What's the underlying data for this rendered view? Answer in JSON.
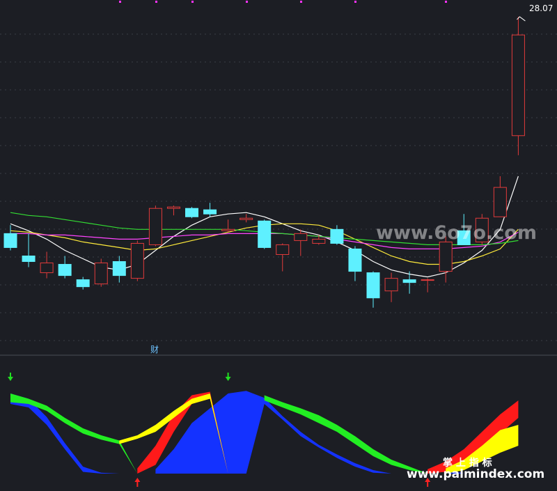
{
  "chart_data": [
    {
      "type": "candlestick",
      "name": "",
      "ylim": [
        16.5,
        28.5
      ],
      "last_price_label": "28.07",
      "note_label": "财",
      "up_color": "#e23b3b",
      "down_color": "#5ef0ff",
      "candles": [
        {
          "o": 20.35,
          "h": 20.65,
          "l": 19.75,
          "c": 19.85
        },
        {
          "o": 19.55,
          "h": 20.35,
          "l": 19.15,
          "c": 19.35
        },
        {
          "o": 18.95,
          "h": 19.7,
          "l": 18.75,
          "c": 19.3
        },
        {
          "o": 19.25,
          "h": 19.55,
          "l": 18.75,
          "c": 18.85
        },
        {
          "o": 18.7,
          "h": 18.8,
          "l": 18.35,
          "c": 18.45
        },
        {
          "o": 18.55,
          "h": 19.45,
          "l": 18.45,
          "c": 19.3
        },
        {
          "o": 19.35,
          "h": 19.55,
          "l": 18.6,
          "c": 18.85
        },
        {
          "o": 18.75,
          "h": 20.1,
          "l": 18.65,
          "c": 20.0
        },
        {
          "o": 19.95,
          "h": 21.35,
          "l": 19.9,
          "c": 21.25
        },
        {
          "o": 21.25,
          "h": 21.35,
          "l": 21.0,
          "c": 21.3
        },
        {
          "o": 21.25,
          "h": 21.3,
          "l": 20.9,
          "c": 20.95
        },
        {
          "o": 21.2,
          "h": 21.45,
          "l": 20.95,
          "c": 21.05
        },
        {
          "o": 20.45,
          "h": 20.85,
          "l": 20.4,
          "c": 20.5
        },
        {
          "o": 20.85,
          "h": 21.05,
          "l": 20.75,
          "c": 20.9
        },
        {
          "o": 20.8,
          "h": 20.85,
          "l": 19.8,
          "c": 19.85
        },
        {
          "o": 19.6,
          "h": 20.0,
          "l": 19.0,
          "c": 19.95
        },
        {
          "o": 20.1,
          "h": 20.5,
          "l": 19.55,
          "c": 20.35
        },
        {
          "o": 20.0,
          "h": 20.3,
          "l": 19.95,
          "c": 20.15
        },
        {
          "o": 20.5,
          "h": 20.65,
          "l": 19.95,
          "c": 20.0
        },
        {
          "o": 19.8,
          "h": 19.9,
          "l": 18.65,
          "c": 19.0
        },
        {
          "o": 18.95,
          "h": 19.0,
          "l": 17.7,
          "c": 18.05
        },
        {
          "o": 18.3,
          "h": 18.95,
          "l": 17.9,
          "c": 18.75
        },
        {
          "o": 18.7,
          "h": 19.0,
          "l": 18.2,
          "c": 18.6
        },
        {
          "o": 18.7,
          "h": 18.75,
          "l": 18.25,
          "c": 18.7
        },
        {
          "o": 19.0,
          "h": 20.25,
          "l": 18.6,
          "c": 20.05
        },
        {
          "o": 20.45,
          "h": 21.05,
          "l": 19.95,
          "c": 19.95
        },
        {
          "o": 20.05,
          "h": 21.05,
          "l": 19.95,
          "c": 20.9
        },
        {
          "o": 20.95,
          "h": 22.4,
          "l": 20.95,
          "c": 22.0
        },
        {
          "o": 23.85,
          "h": 28.1,
          "l": 23.15,
          "c": 27.45
        }
      ],
      "ma_lines": [
        {
          "color": "#ffffff",
          "values": [
            20.7,
            20.45,
            20.15,
            19.75,
            19.45,
            19.15,
            19.05,
            19.25,
            19.75,
            20.25,
            20.65,
            20.95,
            21.05,
            21.1,
            20.95,
            20.7,
            20.45,
            20.3,
            20.05,
            19.75,
            19.35,
            19.05,
            18.9,
            18.8,
            18.95,
            19.3,
            19.75,
            20.5,
            22.4
          ]
        },
        {
          "color": "#ffeb3b",
          "values": [
            20.45,
            20.4,
            20.3,
            20.2,
            20.05,
            19.95,
            19.85,
            19.75,
            19.8,
            19.95,
            20.1,
            20.25,
            20.4,
            20.55,
            20.65,
            20.7,
            20.7,
            20.65,
            20.45,
            20.15,
            19.85,
            19.55,
            19.35,
            19.25,
            19.25,
            19.35,
            19.55,
            19.8,
            20.5
          ]
        },
        {
          "color": "#ff44ff",
          "values": [
            20.35,
            20.35,
            20.3,
            20.3,
            20.25,
            20.2,
            20.15,
            20.15,
            20.2,
            20.25,
            20.3,
            20.3,
            20.35,
            20.35,
            20.35,
            20.35,
            20.3,
            20.25,
            20.15,
            20.05,
            19.95,
            19.85,
            19.8,
            19.8,
            19.8,
            19.85,
            19.9,
            20.05,
            20.4
          ]
        },
        {
          "color": "#33dd33",
          "values": [
            21.1,
            21.0,
            20.95,
            20.85,
            20.75,
            20.65,
            20.55,
            20.5,
            20.5,
            20.5,
            20.5,
            20.5,
            20.5,
            20.45,
            20.4,
            20.35,
            20.3,
            20.25,
            20.2,
            20.15,
            20.1,
            20.05,
            20.0,
            19.95,
            19.95,
            19.95,
            19.95,
            20.0,
            20.1
          ]
        }
      ]
    },
    {
      "type": "area",
      "name": "",
      "ylim": [
        0,
        100
      ],
      "x": [
        0,
        1,
        2,
        3,
        4,
        5,
        6,
        7,
        8,
        9,
        10,
        11,
        12,
        13,
        14,
        15,
        16,
        17,
        18,
        19,
        20,
        21,
        22,
        23,
        24,
        25,
        26,
        27,
        28
      ],
      "bands": [
        {
          "name": "",
          "color": "#1432ff",
          "upper": [
            92,
            86,
            65,
            35,
            8,
            1,
            0,
            0,
            5,
            28,
            58,
            75,
            92,
            95,
            87,
            66,
            48,
            33,
            22,
            12,
            4,
            0,
            0,
            0,
            5,
            0,
            0,
            0,
            0
          ],
          "lower": [
            80,
            76,
            56,
            28,
            2,
            0,
            0,
            0,
            0,
            0,
            0,
            0,
            0,
            0,
            80,
            62,
            43,
            30,
            18,
            8,
            1,
            0,
            0,
            0,
            0,
            0,
            0,
            0,
            0
          ]
        },
        {
          "name": "",
          "color": "#22ee22",
          "upper": [
            92,
            86,
            78,
            64,
            52,
            44,
            38,
            0,
            0,
            0,
            0,
            0,
            0,
            0,
            90,
            82,
            75,
            67,
            56,
            43,
            28,
            16,
            8,
            0,
            0,
            0,
            0,
            0,
            0
          ],
          "lower": [
            82,
            80,
            72,
            58,
            46,
            39,
            34,
            0,
            0,
            0,
            0,
            0,
            0,
            0,
            84,
            76,
            68,
            58,
            48,
            34,
            20,
            10,
            4,
            0,
            0,
            0,
            0,
            0,
            0
          ]
        },
        {
          "name": "",
          "color": "#ff1a1a",
          "upper": [
            0,
            0,
            0,
            0,
            0,
            0,
            0,
            6,
            32,
            68,
            90,
            94,
            0,
            0,
            0,
            0,
            0,
            0,
            0,
            0,
            0,
            0,
            0,
            5,
            14,
            28,
            48,
            68,
            84
          ],
          "lower": [
            0,
            0,
            0,
            0,
            0,
            0,
            0,
            0,
            10,
            48,
            80,
            86,
            0,
            0,
            0,
            0,
            0,
            0,
            0,
            0,
            0,
            0,
            0,
            0,
            2,
            10,
            26,
            46,
            64
          ]
        },
        {
          "name": "",
          "color": "#ffff00",
          "upper": [
            0,
            0,
            0,
            0,
            0,
            0,
            38,
            44,
            56,
            72,
            86,
            92,
            0,
            0,
            0,
            0,
            0,
            0,
            0,
            0,
            0,
            0,
            0,
            0,
            6,
            16,
            32,
            50,
            56
          ],
          "lower": [
            0,
            0,
            0,
            0,
            0,
            0,
            34,
            40,
            48,
            64,
            80,
            86,
            0,
            0,
            0,
            0,
            0,
            0,
            0,
            0,
            0,
            0,
            0,
            0,
            0,
            4,
            14,
            24,
            32
          ]
        }
      ],
      "down_arrows_at": [
        0,
        12
      ],
      "up_arrows_at": [
        7,
        23
      ]
    }
  ],
  "watermarks": {
    "top": "www.6o7o.com",
    "bottom_cn": "掌 上 指 标",
    "bottom_url": "www.palmindex.com"
  }
}
